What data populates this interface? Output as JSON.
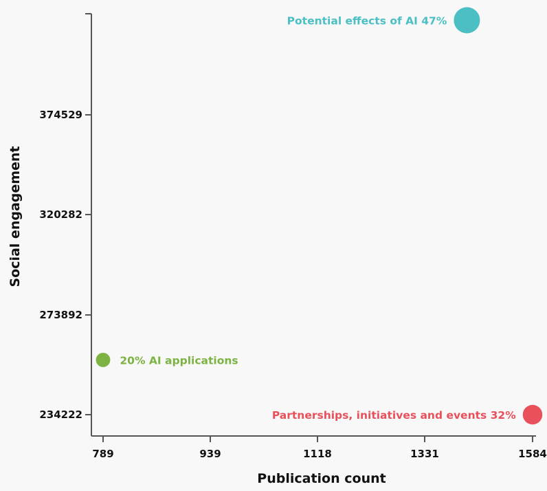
{
  "chart_data": {
    "type": "scatter",
    "title": "",
    "xlabel": "Publication count",
    "ylabel": "Social engagement",
    "x_ticks": [
      "789",
      "939",
      "1118",
      "1331",
      "1584"
    ],
    "y_ticks": [
      "234222",
      "273892",
      "320282",
      "374529"
    ],
    "grid": false,
    "legend": "none",
    "points": [
      {
        "label": "20% AI applications",
        "x": 789,
        "y": 256000,
        "size": 20,
        "color": "#7cb342"
      },
      {
        "label": "Partnerships, initiatives and events 32%",
        "x": 1584,
        "y": 234222,
        "size": 32,
        "color": "#e8505b"
      },
      {
        "label": "Potential effects of AI 47%",
        "x": 1430,
        "y": 426000,
        "size": 47,
        "color": "#4bbfc4"
      }
    ]
  },
  "colors": {
    "background": "#f8f8f8",
    "axis": "#555555",
    "text": "#111111"
  }
}
